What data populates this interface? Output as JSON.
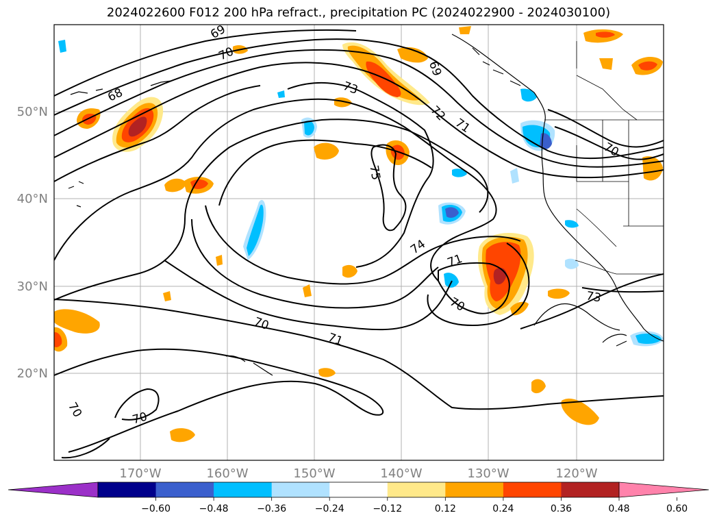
{
  "title": "2024022600 F012 200 hPa refract., precipitation PC (2024022900 - 2024030100)",
  "map": {
    "lat_labels": [
      "50°N",
      "40°N",
      "30°N",
      "20°N"
    ],
    "lon_labels": [
      "170°W",
      "160°W",
      "150°W",
      "140°W",
      "130°W",
      "120°W"
    ],
    "contour_labels": [
      "69",
      "70",
      "68",
      "73",
      "69",
      "72",
      "71",
      "70",
      "75",
      "74",
      "71",
      "70",
      "73",
      "70",
      "71",
      "70",
      "70"
    ]
  },
  "colorbar": {
    "ticks": [
      "−0.60",
      "−0.48",
      "−0.36",
      "−0.24",
      "−0.12",
      "0.12",
      "0.24",
      "0.36",
      "0.48",
      "0.60"
    ],
    "colors": [
      "#9b30c8",
      "#00008b",
      "#3a5fcd",
      "#00bfff",
      "#b0e2ff",
      "#ffffff",
      "#ffe98a",
      "#ffa500",
      "#ff4500",
      "#b22222",
      "#ff82ab"
    ]
  }
}
